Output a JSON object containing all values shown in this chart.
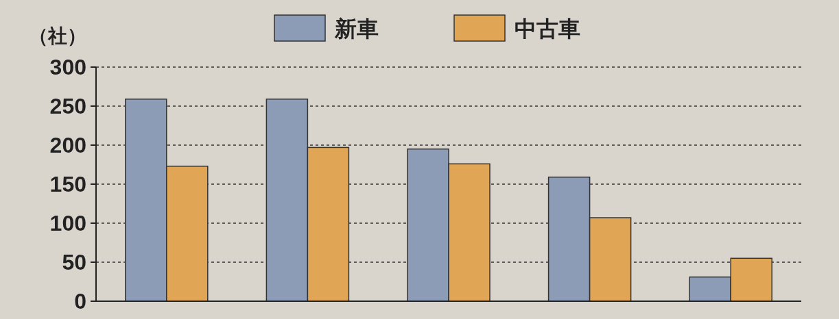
{
  "chart_data": {
    "type": "bar",
    "ylabel": "（社）",
    "categories": [
      null,
      null,
      null,
      null,
      null
    ],
    "series": [
      {
        "name": "新車",
        "color": "#8c9cb6",
        "values": [
          259,
          259,
          195,
          159,
          31
        ]
      },
      {
        "name": "中古車",
        "color": "#e0a656",
        "values": [
          173,
          197,
          176,
          107,
          55
        ]
      }
    ],
    "ylim": [
      0,
      300
    ],
    "yticks": [
      0,
      50,
      100,
      150,
      200,
      250,
      300
    ],
    "grid": "y",
    "legend": "top"
  }
}
